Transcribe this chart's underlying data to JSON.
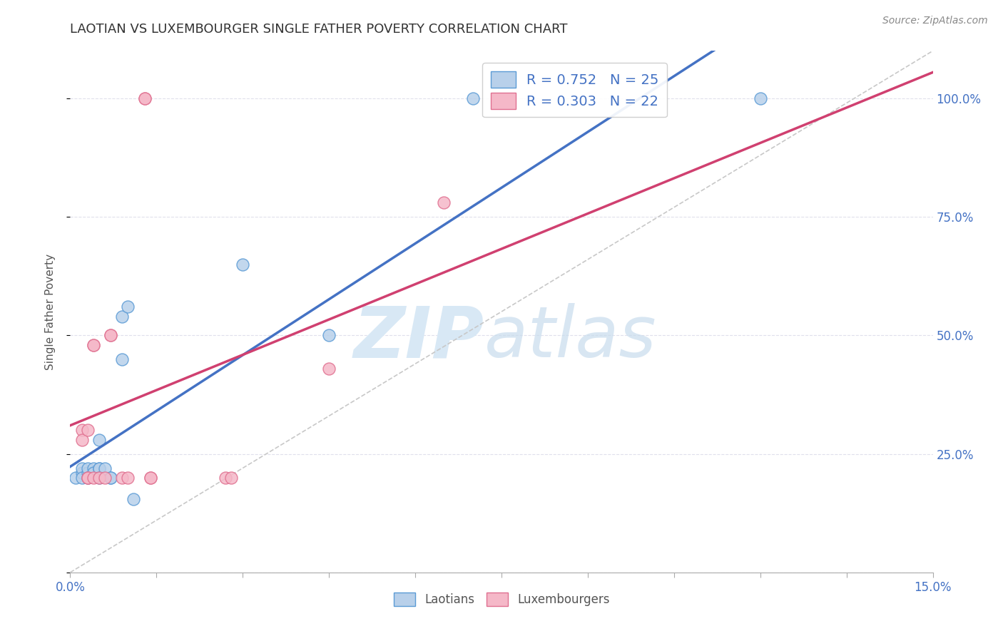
{
  "title": "LAOTIAN VS LUXEMBOURGER SINGLE FATHER POVERTY CORRELATION CHART",
  "source": "Source: ZipAtlas.com",
  "ylabel": "Single Father Poverty",
  "legend_blue_r": "R = 0.752",
  "legend_pink_r": "R = 0.303",
  "legend_blue_n": "N = 25",
  "legend_pink_n": "N = 22",
  "legend_label_blue": "Laotians",
  "legend_label_pink": "Luxembourgers",
  "blue_fill_color": "#b8d0ea",
  "pink_fill_color": "#f5b8c8",
  "blue_edge_color": "#5b9bd5",
  "pink_edge_color": "#e07090",
  "blue_line_color": "#4472c4",
  "pink_line_color": "#d04070",
  "diagonal_color": "#c8c8c8",
  "watermark_zip": "ZIP",
  "watermark_atlas": "atlas",
  "watermark_color": "#d8e8f5",
  "blue_dots": [
    [
      0.001,
      0.2
    ],
    [
      0.002,
      0.21
    ],
    [
      0.002,
      0.22
    ],
    [
      0.002,
      0.2
    ],
    [
      0.003,
      0.21
    ],
    [
      0.003,
      0.22
    ],
    [
      0.003,
      0.2
    ],
    [
      0.004,
      0.21
    ],
    [
      0.004,
      0.22
    ],
    [
      0.004,
      0.21
    ],
    [
      0.005,
      0.22
    ],
    [
      0.005,
      0.28
    ],
    [
      0.005,
      0.22
    ],
    [
      0.005,
      0.2
    ],
    [
      0.006,
      0.22
    ],
    [
      0.007,
      0.2
    ],
    [
      0.007,
      0.2
    ],
    [
      0.009,
      0.45
    ],
    [
      0.009,
      0.54
    ],
    [
      0.01,
      0.56
    ],
    [
      0.011,
      0.155
    ],
    [
      0.03,
      0.65
    ],
    [
      0.045,
      0.5
    ],
    [
      0.07,
      1.0
    ],
    [
      0.12,
      1.0
    ]
  ],
  "pink_dots": [
    [
      0.002,
      0.3
    ],
    [
      0.002,
      0.28
    ],
    [
      0.003,
      0.2
    ],
    [
      0.003,
      0.3
    ],
    [
      0.003,
      0.2
    ],
    [
      0.004,
      0.48
    ],
    [
      0.004,
      0.48
    ],
    [
      0.004,
      0.2
    ],
    [
      0.005,
      0.2
    ],
    [
      0.006,
      0.2
    ],
    [
      0.007,
      0.5
    ],
    [
      0.007,
      0.5
    ],
    [
      0.009,
      0.2
    ],
    [
      0.01,
      0.2
    ],
    [
      0.013,
      1.0
    ],
    [
      0.013,
      1.0
    ],
    [
      0.014,
      0.2
    ],
    [
      0.014,
      0.2
    ],
    [
      0.027,
      0.2
    ],
    [
      0.028,
      0.2
    ],
    [
      0.045,
      0.43
    ],
    [
      0.065,
      0.78
    ]
  ],
  "xlim": [
    0.0,
    0.15
  ],
  "ylim": [
    0.0,
    1.1
  ],
  "ytick_vals": [
    0.0,
    0.25,
    0.5,
    0.75,
    1.0
  ],
  "ytick_labels": [
    "",
    "25.0%",
    "50.0%",
    "75.0%",
    "100.0%"
  ],
  "xtick_vals": [
    0.0,
    0.015,
    0.03,
    0.045,
    0.06,
    0.075,
    0.09,
    0.105,
    0.12,
    0.135,
    0.15
  ],
  "title_fontsize": 13,
  "axis_label_color": "#4472c4",
  "grid_color": "#e0e0ec",
  "text_color": "#555555"
}
